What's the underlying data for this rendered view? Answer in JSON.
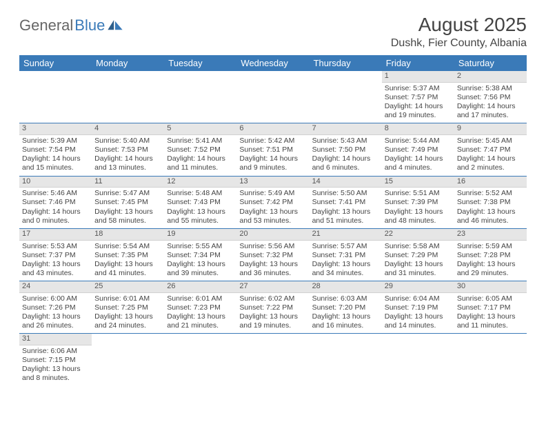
{
  "logo": {
    "general": "General",
    "blue": "Blue"
  },
  "title": "August 2025",
  "location": "Dushk, Fier County, Albania",
  "colors": {
    "header_bg": "#3a7ab8",
    "daynum_bg": "#e6e6e6",
    "border": "#3a7ab8"
  },
  "day_headers": [
    "Sunday",
    "Monday",
    "Tuesday",
    "Wednesday",
    "Thursday",
    "Friday",
    "Saturday"
  ],
  "weeks": [
    [
      {
        "n": "",
        "sr": "",
        "ss": "",
        "dl": ""
      },
      {
        "n": "",
        "sr": "",
        "ss": "",
        "dl": ""
      },
      {
        "n": "",
        "sr": "",
        "ss": "",
        "dl": ""
      },
      {
        "n": "",
        "sr": "",
        "ss": "",
        "dl": ""
      },
      {
        "n": "",
        "sr": "",
        "ss": "",
        "dl": ""
      },
      {
        "n": "1",
        "sr": "Sunrise: 5:37 AM",
        "ss": "Sunset: 7:57 PM",
        "dl": "Daylight: 14 hours and 19 minutes."
      },
      {
        "n": "2",
        "sr": "Sunrise: 5:38 AM",
        "ss": "Sunset: 7:56 PM",
        "dl": "Daylight: 14 hours and 17 minutes."
      }
    ],
    [
      {
        "n": "3",
        "sr": "Sunrise: 5:39 AM",
        "ss": "Sunset: 7:54 PM",
        "dl": "Daylight: 14 hours and 15 minutes."
      },
      {
        "n": "4",
        "sr": "Sunrise: 5:40 AM",
        "ss": "Sunset: 7:53 PM",
        "dl": "Daylight: 14 hours and 13 minutes."
      },
      {
        "n": "5",
        "sr": "Sunrise: 5:41 AM",
        "ss": "Sunset: 7:52 PM",
        "dl": "Daylight: 14 hours and 11 minutes."
      },
      {
        "n": "6",
        "sr": "Sunrise: 5:42 AM",
        "ss": "Sunset: 7:51 PM",
        "dl": "Daylight: 14 hours and 9 minutes."
      },
      {
        "n": "7",
        "sr": "Sunrise: 5:43 AM",
        "ss": "Sunset: 7:50 PM",
        "dl": "Daylight: 14 hours and 6 minutes."
      },
      {
        "n": "8",
        "sr": "Sunrise: 5:44 AM",
        "ss": "Sunset: 7:49 PM",
        "dl": "Daylight: 14 hours and 4 minutes."
      },
      {
        "n": "9",
        "sr": "Sunrise: 5:45 AM",
        "ss": "Sunset: 7:47 PM",
        "dl": "Daylight: 14 hours and 2 minutes."
      }
    ],
    [
      {
        "n": "10",
        "sr": "Sunrise: 5:46 AM",
        "ss": "Sunset: 7:46 PM",
        "dl": "Daylight: 14 hours and 0 minutes."
      },
      {
        "n": "11",
        "sr": "Sunrise: 5:47 AM",
        "ss": "Sunset: 7:45 PM",
        "dl": "Daylight: 13 hours and 58 minutes."
      },
      {
        "n": "12",
        "sr": "Sunrise: 5:48 AM",
        "ss": "Sunset: 7:43 PM",
        "dl": "Daylight: 13 hours and 55 minutes."
      },
      {
        "n": "13",
        "sr": "Sunrise: 5:49 AM",
        "ss": "Sunset: 7:42 PM",
        "dl": "Daylight: 13 hours and 53 minutes."
      },
      {
        "n": "14",
        "sr": "Sunrise: 5:50 AM",
        "ss": "Sunset: 7:41 PM",
        "dl": "Daylight: 13 hours and 51 minutes."
      },
      {
        "n": "15",
        "sr": "Sunrise: 5:51 AM",
        "ss": "Sunset: 7:39 PM",
        "dl": "Daylight: 13 hours and 48 minutes."
      },
      {
        "n": "16",
        "sr": "Sunrise: 5:52 AM",
        "ss": "Sunset: 7:38 PM",
        "dl": "Daylight: 13 hours and 46 minutes."
      }
    ],
    [
      {
        "n": "17",
        "sr": "Sunrise: 5:53 AM",
        "ss": "Sunset: 7:37 PM",
        "dl": "Daylight: 13 hours and 43 minutes."
      },
      {
        "n": "18",
        "sr": "Sunrise: 5:54 AM",
        "ss": "Sunset: 7:35 PM",
        "dl": "Daylight: 13 hours and 41 minutes."
      },
      {
        "n": "19",
        "sr": "Sunrise: 5:55 AM",
        "ss": "Sunset: 7:34 PM",
        "dl": "Daylight: 13 hours and 39 minutes."
      },
      {
        "n": "20",
        "sr": "Sunrise: 5:56 AM",
        "ss": "Sunset: 7:32 PM",
        "dl": "Daylight: 13 hours and 36 minutes."
      },
      {
        "n": "21",
        "sr": "Sunrise: 5:57 AM",
        "ss": "Sunset: 7:31 PM",
        "dl": "Daylight: 13 hours and 34 minutes."
      },
      {
        "n": "22",
        "sr": "Sunrise: 5:58 AM",
        "ss": "Sunset: 7:29 PM",
        "dl": "Daylight: 13 hours and 31 minutes."
      },
      {
        "n": "23",
        "sr": "Sunrise: 5:59 AM",
        "ss": "Sunset: 7:28 PM",
        "dl": "Daylight: 13 hours and 29 minutes."
      }
    ],
    [
      {
        "n": "24",
        "sr": "Sunrise: 6:00 AM",
        "ss": "Sunset: 7:26 PM",
        "dl": "Daylight: 13 hours and 26 minutes."
      },
      {
        "n": "25",
        "sr": "Sunrise: 6:01 AM",
        "ss": "Sunset: 7:25 PM",
        "dl": "Daylight: 13 hours and 24 minutes."
      },
      {
        "n": "26",
        "sr": "Sunrise: 6:01 AM",
        "ss": "Sunset: 7:23 PM",
        "dl": "Daylight: 13 hours and 21 minutes."
      },
      {
        "n": "27",
        "sr": "Sunrise: 6:02 AM",
        "ss": "Sunset: 7:22 PM",
        "dl": "Daylight: 13 hours and 19 minutes."
      },
      {
        "n": "28",
        "sr": "Sunrise: 6:03 AM",
        "ss": "Sunset: 7:20 PM",
        "dl": "Daylight: 13 hours and 16 minutes."
      },
      {
        "n": "29",
        "sr": "Sunrise: 6:04 AM",
        "ss": "Sunset: 7:19 PM",
        "dl": "Daylight: 13 hours and 14 minutes."
      },
      {
        "n": "30",
        "sr": "Sunrise: 6:05 AM",
        "ss": "Sunset: 7:17 PM",
        "dl": "Daylight: 13 hours and 11 minutes."
      }
    ],
    [
      {
        "n": "31",
        "sr": "Sunrise: 6:06 AM",
        "ss": "Sunset: 7:15 PM",
        "dl": "Daylight: 13 hours and 8 minutes."
      },
      {
        "n": "",
        "sr": "",
        "ss": "",
        "dl": ""
      },
      {
        "n": "",
        "sr": "",
        "ss": "",
        "dl": ""
      },
      {
        "n": "",
        "sr": "",
        "ss": "",
        "dl": ""
      },
      {
        "n": "",
        "sr": "",
        "ss": "",
        "dl": ""
      },
      {
        "n": "",
        "sr": "",
        "ss": "",
        "dl": ""
      },
      {
        "n": "",
        "sr": "",
        "ss": "",
        "dl": ""
      }
    ]
  ]
}
